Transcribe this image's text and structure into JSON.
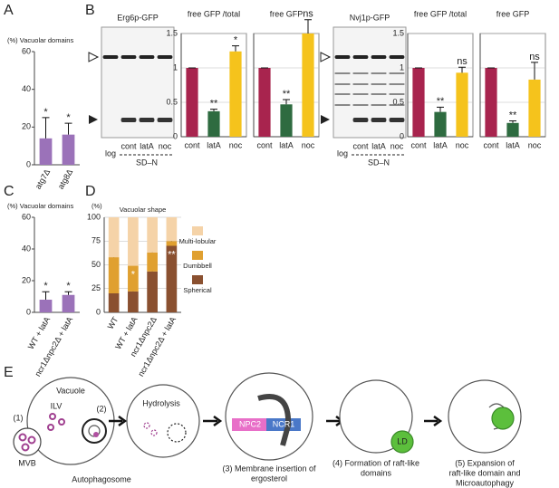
{
  "panel_labels": [
    "A",
    "B",
    "C",
    "D",
    "E"
  ],
  "blots": [
    {
      "title": "Erg6p-GFP",
      "lanes": [
        "log",
        "cont",
        "latA",
        "noc"
      ],
      "condition": "SD–N"
    },
    {
      "title": "Nvj1p-GFP",
      "lanes": [
        "log",
        "cont",
        "latA",
        "noc"
      ],
      "condition": "SD–N"
    }
  ],
  "chart_data": [
    {
      "type": "bar",
      "title": "(%) Vacuolar domains",
      "categories": [
        "atg7Δ",
        "atg8Δ"
      ],
      "values": [
        14,
        16
      ],
      "errors": [
        11,
        6
      ],
      "color": "#9b72b9",
      "ylim": [
        0,
        60
      ],
      "yticks": [
        0,
        20,
        40,
        60
      ],
      "annotations": [
        {
          "index": 0,
          "text": "*"
        },
        {
          "index": 1,
          "text": "*"
        }
      ]
    },
    {
      "type": "bar",
      "title": "free GFP /total",
      "categories": [
        "cont",
        "latA",
        "noc"
      ],
      "values": [
        1,
        0.37,
        1.24
      ],
      "errors": [
        0,
        0.03,
        0.08
      ],
      "colors": [
        "#a8244e",
        "#2e6b40",
        "#f5c31c"
      ],
      "ylim": [
        0,
        1.5
      ],
      "yticks": [
        0,
        0.5,
        1,
        1.5
      ],
      "grid": true,
      "annotations": [
        {
          "index": 1,
          "text": "**"
        },
        {
          "index": 2,
          "text": "*"
        }
      ]
    },
    {
      "type": "bar",
      "title": "free GFP",
      "categories": [
        "cont",
        "latA",
        "noc"
      ],
      "values": [
        1,
        0.47,
        1.5
      ],
      "errors": [
        0,
        0.07,
        0.2
      ],
      "colors": [
        "#a8244e",
        "#2e6b40",
        "#f5c31c"
      ],
      "ylim": [
        0,
        1.5
      ],
      "yticks": [
        0,
        0.5,
        1,
        1.5
      ],
      "grid": true,
      "annotations": [
        {
          "index": 1,
          "text": "**"
        },
        {
          "index": 2,
          "text": "ns"
        }
      ]
    },
    {
      "type": "bar",
      "title": "free GFP /total",
      "categories": [
        "cont",
        "latA",
        "noc"
      ],
      "values": [
        1,
        0.36,
        0.93
      ],
      "errors": [
        0,
        0.07,
        0.08
      ],
      "colors": [
        "#a8244e",
        "#2e6b40",
        "#f5c31c"
      ],
      "ylim": [
        0,
        1.5
      ],
      "yticks": [
        0,
        0.5,
        1,
        1.5
      ],
      "grid": true,
      "annotations": [
        {
          "index": 1,
          "text": "**"
        },
        {
          "index": 2,
          "text": "ns"
        }
      ]
    },
    {
      "type": "bar",
      "title": "free GFP",
      "categories": [
        "cont",
        "latA",
        "noc"
      ],
      "values": [
        1,
        0.2,
        0.83
      ],
      "errors": [
        0,
        0.03,
        0.25
      ],
      "colors": [
        "#a8244e",
        "#2e6b40",
        "#f5c31c"
      ],
      "ylim": [
        0,
        1.5
      ],
      "yticks": [
        0,
        0.5,
        1,
        1.5
      ],
      "grid": true,
      "annotations": [
        {
          "index": 1,
          "text": "**"
        },
        {
          "index": 2,
          "text": "ns"
        }
      ]
    },
    {
      "type": "bar",
      "title": "(%) Vacuolar domains",
      "categories": [
        "WT + latA",
        "ncr1Δnpc2Δ + latA"
      ],
      "values": [
        8,
        11
      ],
      "errors": [
        5,
        2
      ],
      "color": "#9b72b9",
      "ylim": [
        0,
        60
      ],
      "yticks": [
        0,
        20,
        40,
        60
      ],
      "annotations": [
        {
          "index": 0,
          "text": "*"
        },
        {
          "index": 1,
          "text": "*"
        }
      ]
    },
    {
      "type": "stacked",
      "title": "Vacuolar shape",
      "ylabel": "(%)",
      "categories": [
        "WT",
        "WT + latA",
        "ncr1Δnpc2Δ",
        "ncr1Δnpc2Δ + latA"
      ],
      "series": [
        {
          "name": "Spherical",
          "color": "#8a5030",
          "values": [
            20,
            22,
            43,
            70
          ]
        },
        {
          "name": "Dumbbell",
          "color": "#e0a030",
          "values": [
            38,
            27,
            20,
            5
          ]
        },
        {
          "name": "Multi-lobular",
          "color": "#f5d3a8",
          "values": [
            42,
            51,
            37,
            25
          ]
        }
      ],
      "ylim": [
        0,
        100
      ],
      "yticks": [
        0,
        25,
        50,
        75,
        100
      ],
      "grid": true,
      "annotations": [
        {
          "series": 1,
          "index": 1,
          "text": "*"
        },
        {
          "series": 0,
          "index": 3,
          "text": "**"
        }
      ]
    }
  ],
  "diagram": {
    "vacuole": "Vacuole",
    "ilv": "ILV",
    "step1": "(1)",
    "mvb": "MVB",
    "step2": "(2)",
    "autophagosome": "Autophagosome",
    "hydrolysis": "Hydrolysis",
    "npc2": "NPC2",
    "ncr1": "NCR1",
    "ld": "LD",
    "caption3": [
      "(3) Membrane insertion of",
      "ergosterol"
    ],
    "caption4": [
      "(4) Formation of raft-like",
      "domains"
    ],
    "caption5": [
      "(5) Expansion of",
      "raft-like domain and",
      "Microautophagy"
    ]
  }
}
